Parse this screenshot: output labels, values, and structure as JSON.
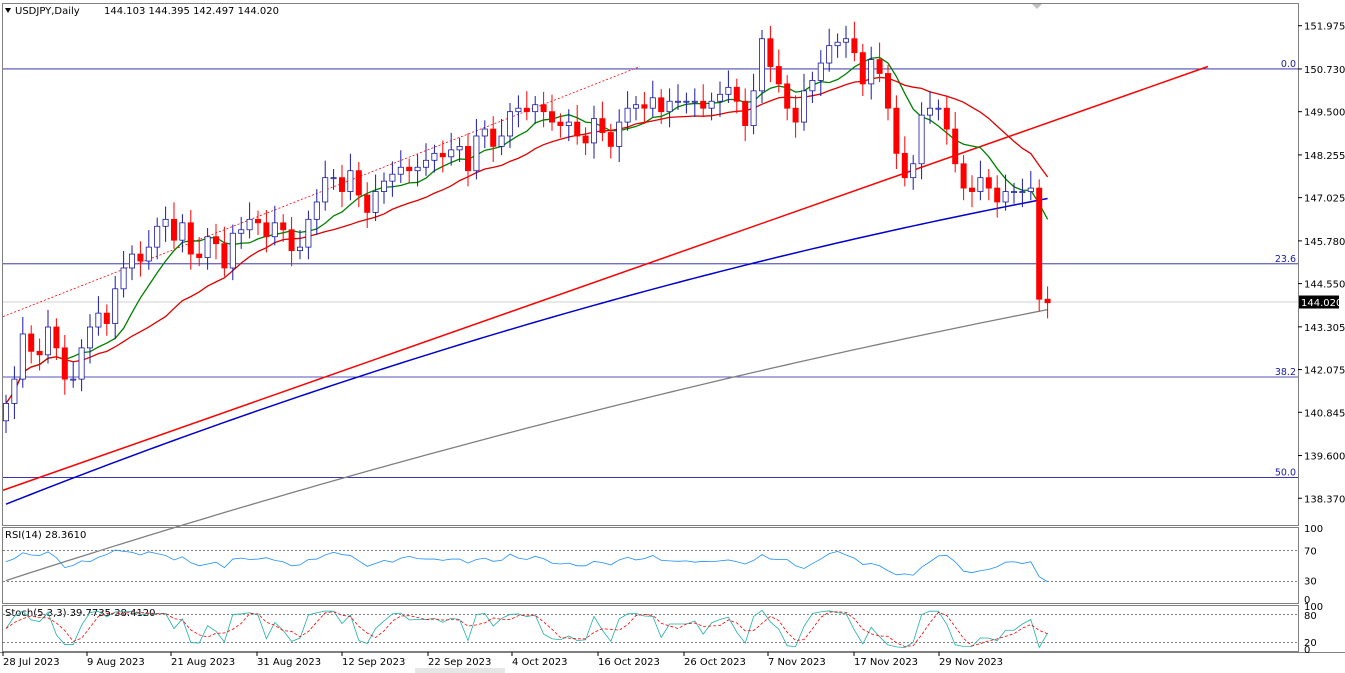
{
  "header": {
    "symbol_label": "USDJPY,Daily",
    "ohlc_text": "144.103 144.395 142.497 144.020"
  },
  "price_panel": {
    "ylim": [
      137.6,
      152.6
    ],
    "ticks": [
      "151.975",
      "150.730",
      "149.500",
      "148.255",
      "147.025",
      "145.780",
      "144.550",
      "143.305",
      "142.075",
      "140.845",
      "139.600",
      "138.370"
    ],
    "current_price_label": "144.020",
    "current_price": 144.02,
    "fib_levels": [
      {
        "label": "0.0",
        "price": 150.73
      },
      {
        "label": "23.6",
        "price": 145.12
      },
      {
        "label": "38.2",
        "price": 141.86
      },
      {
        "label": "50.0",
        "price": 138.97
      }
    ],
    "colors": {
      "bull_body": "#ffffff",
      "bull_border": "#1a1aa6",
      "bear": "#ff0000",
      "ma20": "#008000",
      "ma50": "#e00000",
      "ma100": "#0000cc",
      "ma200": "#808080",
      "trend": "#ff0000",
      "fib": "#1a1aa6"
    }
  },
  "rsi_panel": {
    "label": "RSI(14) 28.3610",
    "ticks": [
      "100",
      "70",
      "30",
      "0"
    ],
    "color": "#1e90ff"
  },
  "stoch_panel": {
    "label": "Stoch(5,3,3) 39.7735 38.4120",
    "ticks": [
      "100",
      "80",
      "20",
      "0"
    ],
    "main_color": "#20b2aa",
    "signal_color": "#ff0000"
  },
  "date_axis": {
    "labels": [
      "28 Jul 2023",
      "9 Aug 2023",
      "21 Aug 2023",
      "31 Aug 2023",
      "12 Sep 2023",
      "22 Sep 2023",
      "4 Oct 2023",
      "16 Oct 2023",
      "26 Oct 2023",
      "7 Nov 2023",
      "17 Nov 2023",
      "29 Nov 2023"
    ]
  },
  "chart_data": {
    "type": "candlestick",
    "symbol": "USDJPY",
    "timeframe": "Daily",
    "closes": [
      141.1,
      141.8,
      143.1,
      142.6,
      142.5,
      143.3,
      142.7,
      141.8,
      141.8,
      142.7,
      143.3,
      143.7,
      143.4,
      144.4,
      145.0,
      145.4,
      145.2,
      145.6,
      146.2,
      146.4,
      145.8,
      146.3,
      145.4,
      145.3,
      145.9,
      145.7,
      145.0,
      146.0,
      146.1,
      146.4,
      146.3,
      145.9,
      146.3,
      146.1,
      145.5,
      145.6,
      146.4,
      146.9,
      147.6,
      147.6,
      147.2,
      147.8,
      147.1,
      146.6,
      147.2,
      147.5,
      147.7,
      147.9,
      147.8,
      147.9,
      148.1,
      148.3,
      148.2,
      148.4,
      148.5,
      147.8,
      148.8,
      149.0,
      148.5,
      148.8,
      149.5,
      149.6,
      149.5,
      149.7,
      149.5,
      149.2,
      149.1,
      149.2,
      148.8,
      148.6,
      149.3,
      148.9,
      148.5,
      149.2,
      149.6,
      149.7,
      149.6,
      149.9,
      149.5,
      149.8,
      149.8,
      149.8,
      149.8,
      149.6,
      149.8,
      150.0,
      150.2,
      149.8,
      149.1,
      150.1,
      151.6,
      150.8,
      150.3,
      149.6,
      149.2,
      150.1,
      150.4,
      150.9,
      151.4,
      151.5,
      151.6,
      151.2,
      150.3,
      151.0,
      150.6,
      149.6,
      148.3,
      147.6,
      148.0,
      149.4,
      149.6,
      149.6,
      149.0,
      148.0,
      147.3,
      147.2,
      147.6,
      147.3,
      146.9,
      147.2,
      147.2,
      147.2,
      147.3,
      144.1,
      144.0
    ],
    "ma20_end": 147.7,
    "ma50_end": 148.4,
    "ma100_end": 147.0,
    "ma200_end": 143.8,
    "trendline": {
      "from": 138.6,
      "to": 150.8
    },
    "rsi_last": 28.361,
    "stoch_main_last": 39.7735,
    "stoch_signal_last": 38.412
  }
}
